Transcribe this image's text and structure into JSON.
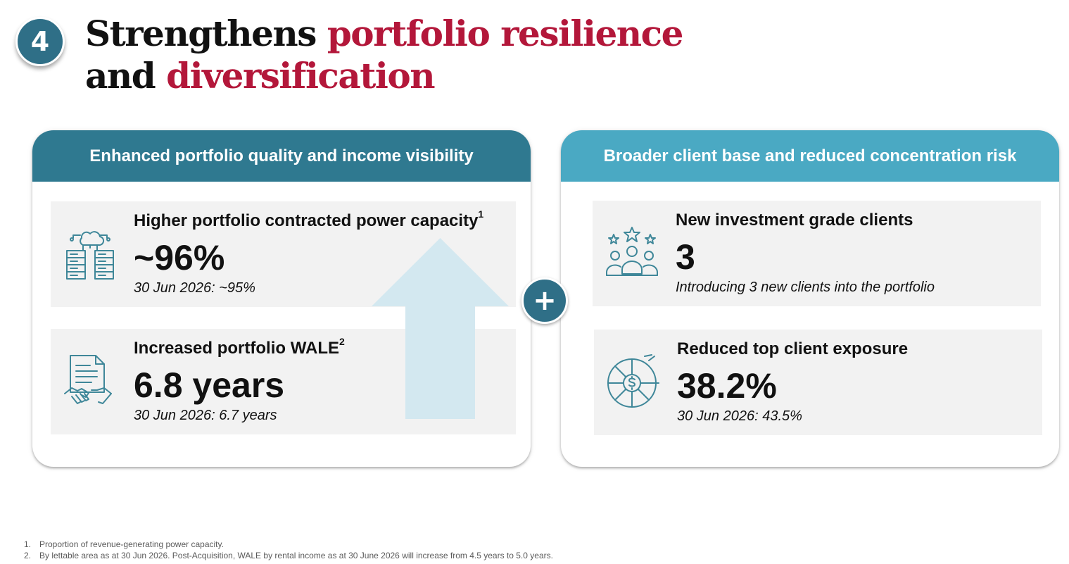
{
  "slide": {
    "number": "4",
    "title": {
      "part1": "Strengthens ",
      "accent1": "portfolio resilience",
      "part2": "and ",
      "accent2": "diversification"
    }
  },
  "colors": {
    "accent": "#b3173a",
    "badge": "#2f6f87",
    "left_header": "#2f7990",
    "right_header": "#4aa9c3",
    "card_bg": "#f2f2f2",
    "arrow": "#d3e8f0"
  },
  "panels": {
    "left": {
      "header": "Enhanced portfolio quality and income visibility",
      "cards": [
        {
          "icon": "server-cloud-icon",
          "heading": "Higher portfolio contracted power capacity",
          "sup": "1",
          "value": "~96%",
          "note": "30 Jun 2026: ~95%"
        },
        {
          "icon": "contract-handshake-icon",
          "heading": "Increased portfolio WALE",
          "sup": "2",
          "value": "6.8 years",
          "note": "30 Jun 2026: 6.7 years"
        }
      ]
    },
    "right": {
      "header": "Broader client base and reduced concentration risk",
      "cards": [
        {
          "icon": "rated-clients-icon",
          "heading": "New investment grade clients",
          "value": "3",
          "note": "Introducing 3 new clients into the portfolio"
        },
        {
          "icon": "dollar-pie-chart-icon",
          "heading": "Reduced top client exposure",
          "value": "38.2%",
          "note": "30 Jun 2026: 43.5%"
        }
      ]
    }
  },
  "plus_symbol": "+",
  "footnotes": [
    {
      "num": "1.",
      "text": "Proportion of revenue-generating power capacity."
    },
    {
      "num": "2.",
      "text": "By lettable area as at 30 Jun 2026. Post-Acquisition, WALE by rental income as at 30 June 2026 will increase from 4.5 years to 5.0 years."
    }
  ]
}
